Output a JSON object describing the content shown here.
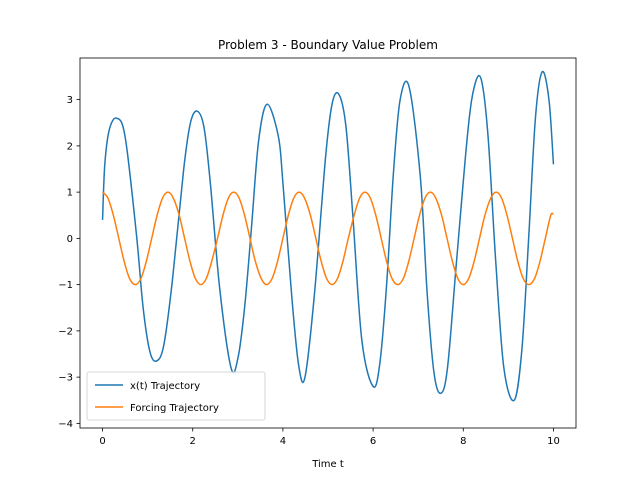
{
  "chart_data": {
    "type": "line",
    "title": "Problem 3 - Boundary Value Problem",
    "xlabel": "Time t",
    "ylabel": "",
    "xlim": [
      -0.5,
      10.5
    ],
    "ylim": [
      -4.1,
      3.9
    ],
    "xticks": [
      0,
      2,
      4,
      6,
      8,
      10
    ],
    "xtick_labels": [
      "0",
      "2",
      "4",
      "6",
      "8",
      "10"
    ],
    "yticks": [
      -4,
      -3,
      -2,
      -1,
      0,
      1,
      2,
      3
    ],
    "ytick_labels": [
      "−4",
      "−3",
      "−2",
      "−1",
      "0",
      "1",
      "2",
      "3"
    ],
    "grid": false,
    "legend_position": "lower-left",
    "series": [
      {
        "name": "x(t) Trajectory",
        "color": "#1f77b4",
        "x": [
          0,
          0.05,
          0.15,
          0.31,
          0.5,
          0.75,
          0.9,
          1.05,
          1.2,
          1.36,
          1.55,
          1.8,
          1.95,
          2.1,
          2.25,
          2.39,
          2.6,
          2.85,
          3.0,
          3.15,
          3.3,
          3.46,
          3.65,
          3.9,
          4.0,
          4.2,
          4.35,
          4.49,
          4.7,
          4.95,
          5.1,
          5.25,
          5.4,
          5.55,
          5.75,
          6.0,
          6.15,
          6.3,
          6.45,
          6.6,
          6.8,
          7.05,
          7.2,
          7.35,
          7.5,
          7.65,
          7.85,
          8.1,
          8.25,
          8.4,
          8.55,
          8.72,
          8.9,
          9.13,
          9.3,
          9.45,
          9.6,
          9.75,
          9.9,
          10.0
        ],
        "y": [
          0.4,
          1.6,
          2.35,
          2.6,
          2.2,
          0.1,
          -1.5,
          -2.45,
          -2.65,
          -2.3,
          -0.9,
          1.5,
          2.5,
          2.75,
          2.4,
          1.2,
          -1.1,
          -2.8,
          -2.6,
          -1.5,
          0.2,
          2.1,
          2.9,
          2.2,
          1.2,
          -1.3,
          -2.75,
          -3.0,
          -1.2,
          1.8,
          2.95,
          3.1,
          2.4,
          0.5,
          -2.2,
          -3.2,
          -2.7,
          -1.0,
          1.4,
          3.0,
          3.27,
          1.3,
          -1.2,
          -2.9,
          -3.35,
          -2.8,
          -0.5,
          2.3,
          3.3,
          3.43,
          2.2,
          -0.5,
          -2.8,
          -3.5,
          -2.4,
          0.0,
          2.6,
          3.6,
          3.0,
          1.6
        ]
      },
      {
        "name": "Forcing Trajectory",
        "color": "#ff7f0e",
        "x": [
          0,
          0.12,
          0.24,
          0.36,
          0.48,
          0.6,
          0.73,
          0.85,
          0.97,
          1.09,
          1.21,
          1.33,
          1.45,
          1.57,
          1.7,
          1.82,
          1.94,
          2.06,
          2.18,
          2.3,
          2.42,
          2.55,
          2.67,
          2.79,
          2.91,
          3.03,
          3.15,
          3.27,
          3.39,
          3.52,
          3.64,
          3.76,
          3.88,
          4.0,
          4.12,
          4.24,
          4.36,
          4.48,
          4.61,
          4.73,
          4.85,
          4.97,
          5.09,
          5.21,
          5.33,
          5.45,
          5.58,
          5.7,
          5.82,
          5.94,
          6.06,
          6.18,
          6.3,
          6.42,
          6.55,
          6.67,
          6.79,
          6.91,
          7.03,
          7.15,
          7.27,
          7.39,
          7.52,
          7.64,
          7.76,
          7.88,
          8.0,
          8.12,
          8.24,
          8.36,
          8.48,
          8.61,
          8.73,
          8.85,
          8.97,
          9.09,
          9.21,
          9.33,
          9.45,
          9.58,
          9.7,
          9.82,
          9.94,
          10.0
        ],
        "y": [
          1.0,
          0.87,
          0.5,
          0.0,
          -0.5,
          -0.87,
          -1.0,
          -0.87,
          -0.5,
          0.0,
          0.5,
          0.87,
          1.0,
          0.87,
          0.5,
          0.0,
          -0.5,
          -0.87,
          -1.0,
          -0.87,
          -0.5,
          0.0,
          0.5,
          0.87,
          1.0,
          0.87,
          0.5,
          0.0,
          -0.5,
          -0.87,
          -1.0,
          -0.87,
          -0.5,
          0.0,
          0.5,
          0.87,
          1.0,
          0.87,
          0.5,
          0.0,
          -0.5,
          -0.87,
          -1.0,
          -0.87,
          -0.5,
          0.0,
          0.5,
          0.87,
          1.0,
          0.87,
          0.5,
          0.0,
          -0.5,
          -0.87,
          -1.0,
          -0.87,
          -0.5,
          0.0,
          0.5,
          0.87,
          1.0,
          0.87,
          0.5,
          0.0,
          -0.5,
          -0.87,
          -1.0,
          -0.87,
          -0.5,
          0.0,
          0.5,
          0.87,
          1.0,
          0.87,
          0.5,
          0.0,
          -0.5,
          -0.87,
          -1.0,
          -0.87,
          -0.5,
          0.0,
          0.5,
          0.52
        ]
      }
    ]
  }
}
